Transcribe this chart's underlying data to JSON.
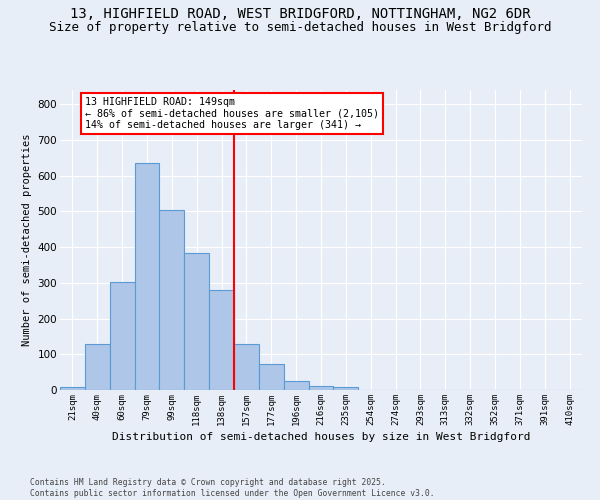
{
  "title1": "13, HIGHFIELD ROAD, WEST BRIDGFORD, NOTTINGHAM, NG2 6DR",
  "title2": "Size of property relative to semi-detached houses in West Bridgford",
  "xlabel": "Distribution of semi-detached houses by size in West Bridgford",
  "ylabel": "Number of semi-detached properties",
  "categories": [
    "21sqm",
    "40sqm",
    "60sqm",
    "79sqm",
    "99sqm",
    "118sqm",
    "138sqm",
    "157sqm",
    "177sqm",
    "196sqm",
    "216sqm",
    "235sqm",
    "254sqm",
    "274sqm",
    "293sqm",
    "313sqm",
    "332sqm",
    "352sqm",
    "371sqm",
    "391sqm",
    "410sqm"
  ],
  "values": [
    8,
    128,
    303,
    637,
    503,
    383,
    280,
    130,
    73,
    25,
    12,
    8,
    0,
    0,
    0,
    0,
    0,
    0,
    0,
    0,
    0
  ],
  "bar_color": "#aec6e8",
  "bar_edge_color": "#5b9bd5",
  "vline_color": "red",
  "vline_pos": 6.5,
  "annotation_title": "13 HIGHFIELD ROAD: 149sqm",
  "annotation_line1": "← 86% of semi-detached houses are smaller (2,105)",
  "annotation_line2": "14% of semi-detached houses are larger (341) →",
  "annotation_box_color": "white",
  "annotation_box_edge": "red",
  "footer1": "Contains HM Land Registry data © Crown copyright and database right 2025.",
  "footer2": "Contains public sector information licensed under the Open Government Licence v3.0.",
  "ylim": [
    0,
    840
  ],
  "yticks": [
    0,
    100,
    200,
    300,
    400,
    500,
    600,
    700,
    800
  ],
  "background_color": "#e8eef7",
  "grid_color": "white",
  "title_fontsize": 10,
  "subtitle_fontsize": 9,
  "bar_width": 1.0
}
